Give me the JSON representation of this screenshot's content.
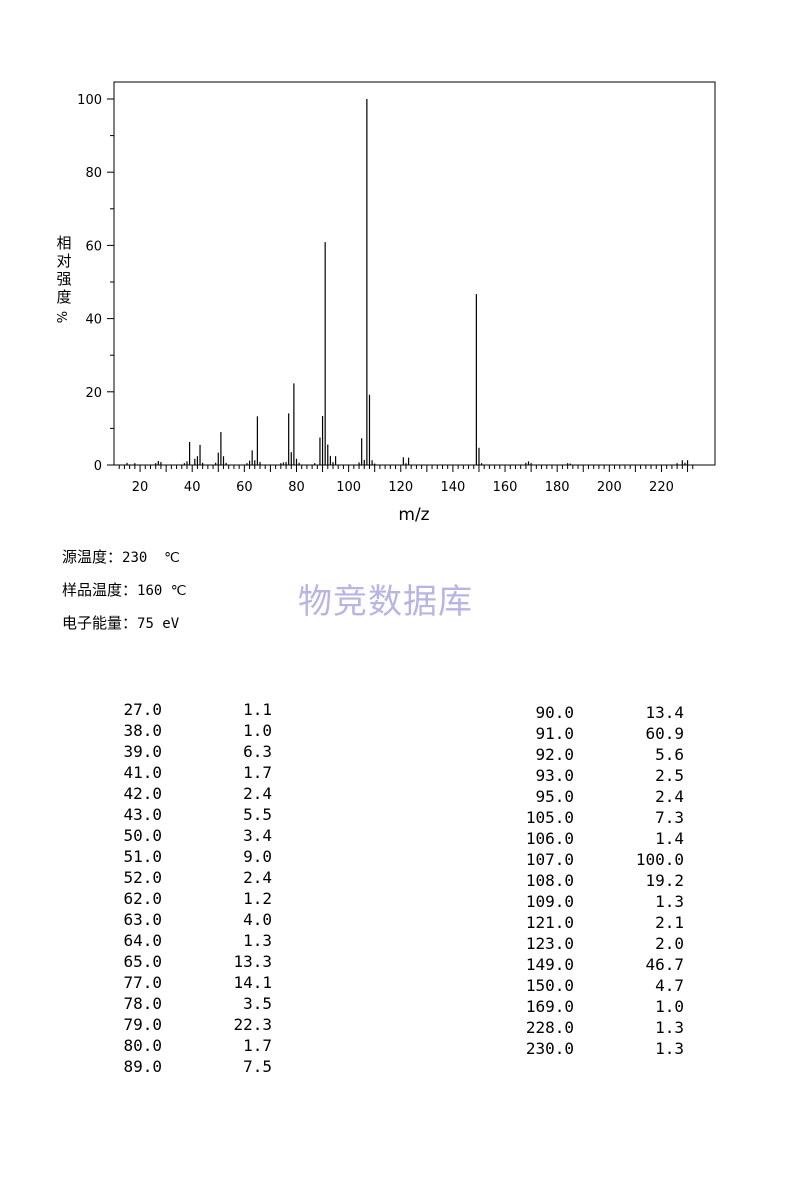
{
  "chart_data": {
    "type": "bar",
    "xlabel": "m/z",
    "ylabel_chars": [
      "相",
      "对",
      "强",
      "度"
    ],
    "ylabel_unit": "%",
    "xlim": [
      10,
      235
    ],
    "ylim": [
      0,
      100
    ],
    "x_ticks": [
      20,
      40,
      60,
      80,
      100,
      120,
      140,
      160,
      180,
      200,
      220
    ],
    "y_ticks": [
      0,
      20,
      40,
      60,
      80,
      100
    ],
    "peaks": [
      {
        "x": 27.0,
        "y": 1.1
      },
      {
        "x": 38.0,
        "y": 1.0
      },
      {
        "x": 39.0,
        "y": 6.3
      },
      {
        "x": 41.0,
        "y": 1.7
      },
      {
        "x": 42.0,
        "y": 2.4
      },
      {
        "x": 43.0,
        "y": 5.5
      },
      {
        "x": 50.0,
        "y": 3.4
      },
      {
        "x": 51.0,
        "y": 9.0
      },
      {
        "x": 52.0,
        "y": 2.4
      },
      {
        "x": 62.0,
        "y": 1.2
      },
      {
        "x": 63.0,
        "y": 4.0
      },
      {
        "x": 64.0,
        "y": 1.3
      },
      {
        "x": 65.0,
        "y": 13.3
      },
      {
        "x": 77.0,
        "y": 14.1
      },
      {
        "x": 78.0,
        "y": 3.5
      },
      {
        "x": 79.0,
        "y": 22.3
      },
      {
        "x": 80.0,
        "y": 1.7
      },
      {
        "x": 89.0,
        "y": 7.5
      },
      {
        "x": 90.0,
        "y": 13.4
      },
      {
        "x": 91.0,
        "y": 60.9
      },
      {
        "x": 92.0,
        "y": 5.6
      },
      {
        "x": 93.0,
        "y": 2.5
      },
      {
        "x": 95.0,
        "y": 2.4
      },
      {
        "x": 105.0,
        "y": 7.3
      },
      {
        "x": 106.0,
        "y": 1.4
      },
      {
        "x": 107.0,
        "y": 100.0
      },
      {
        "x": 108.0,
        "y": 19.2
      },
      {
        "x": 109.0,
        "y": 1.3
      },
      {
        "x": 121.0,
        "y": 2.1
      },
      {
        "x": 123.0,
        "y": 2.0
      },
      {
        "x": 149.0,
        "y": 46.7
      },
      {
        "x": 150.0,
        "y": 4.7
      },
      {
        "x": 169.0,
        "y": 1.0
      },
      {
        "x": 228.0,
        "y": 1.3
      },
      {
        "x": 230.0,
        "y": 1.3
      }
    ],
    "minor_peaks": [
      {
        "x": 15,
        "y": 0.6
      },
      {
        "x": 18,
        "y": 0.5
      },
      {
        "x": 26,
        "y": 0.5
      },
      {
        "x": 28,
        "y": 0.8
      },
      {
        "x": 37,
        "y": 0.5
      },
      {
        "x": 44,
        "y": 0.6
      },
      {
        "x": 49,
        "y": 0.6
      },
      {
        "x": 53,
        "y": 0.6
      },
      {
        "x": 61,
        "y": 0.5
      },
      {
        "x": 66,
        "y": 0.8
      },
      {
        "x": 74,
        "y": 0.5
      },
      {
        "x": 75,
        "y": 0.7
      },
      {
        "x": 76,
        "y": 0.8
      },
      {
        "x": 81,
        "y": 0.6
      },
      {
        "x": 87,
        "y": 0.5
      },
      {
        "x": 94,
        "y": 0.8
      },
      {
        "x": 104,
        "y": 0.7
      },
      {
        "x": 110,
        "y": 0.4
      },
      {
        "x": 122,
        "y": 0.5
      },
      {
        "x": 151,
        "y": 0.5
      },
      {
        "x": 168,
        "y": 0.6
      },
      {
        "x": 170,
        "y": 0.5
      },
      {
        "x": 184,
        "y": 0.5
      },
      {
        "x": 185,
        "y": 0.4
      },
      {
        "x": 226,
        "y": 0.5
      },
      {
        "x": 229,
        "y": 0.6
      }
    ]
  },
  "conditions": {
    "source_temp_label": "源温度：",
    "source_temp_value": "230  ℃",
    "sample_temp_label": "样品温度：",
    "sample_temp_value": "160 ℃",
    "energy_label": "电子能量：",
    "energy_value": "75 eV"
  },
  "watermark": "物竞数据库",
  "peak_table": {
    "left": [
      {
        "mz": "27.0",
        "intensity": "1.1"
      },
      {
        "mz": "38.0",
        "intensity": "1.0"
      },
      {
        "mz": "39.0",
        "intensity": "6.3"
      },
      {
        "mz": "41.0",
        "intensity": "1.7"
      },
      {
        "mz": "42.0",
        "intensity": "2.4"
      },
      {
        "mz": "43.0",
        "intensity": "5.5"
      },
      {
        "mz": "50.0",
        "intensity": "3.4"
      },
      {
        "mz": "51.0",
        "intensity": "9.0"
      },
      {
        "mz": "52.0",
        "intensity": "2.4"
      },
      {
        "mz": "62.0",
        "intensity": "1.2"
      },
      {
        "mz": "63.0",
        "intensity": "4.0"
      },
      {
        "mz": "64.0",
        "intensity": "1.3"
      },
      {
        "mz": "65.0",
        "intensity": "13.3"
      },
      {
        "mz": "77.0",
        "intensity": "14.1"
      },
      {
        "mz": "78.0",
        "intensity": "3.5"
      },
      {
        "mz": "79.0",
        "intensity": "22.3"
      },
      {
        "mz": "80.0",
        "intensity": "1.7"
      },
      {
        "mz": "89.0",
        "intensity": "7.5"
      }
    ],
    "right": [
      {
        "mz": "90.0",
        "intensity": "13.4"
      },
      {
        "mz": "91.0",
        "intensity": "60.9"
      },
      {
        "mz": "92.0",
        "intensity": "5.6"
      },
      {
        "mz": "93.0",
        "intensity": "2.5"
      },
      {
        "mz": "95.0",
        "intensity": "2.4"
      },
      {
        "mz": "105.0",
        "intensity": "7.3"
      },
      {
        "mz": "106.0",
        "intensity": "1.4"
      },
      {
        "mz": "107.0",
        "intensity": "100.0"
      },
      {
        "mz": "108.0",
        "intensity": "19.2"
      },
      {
        "mz": "109.0",
        "intensity": "1.3"
      },
      {
        "mz": "121.0",
        "intensity": "2.1"
      },
      {
        "mz": "123.0",
        "intensity": "2.0"
      },
      {
        "mz": "149.0",
        "intensity": "46.7"
      },
      {
        "mz": "150.0",
        "intensity": "4.7"
      },
      {
        "mz": "169.0",
        "intensity": "1.0"
      },
      {
        "mz": "228.0",
        "intensity": "1.3"
      },
      {
        "mz": "230.0",
        "intensity": "1.3"
      }
    ]
  }
}
